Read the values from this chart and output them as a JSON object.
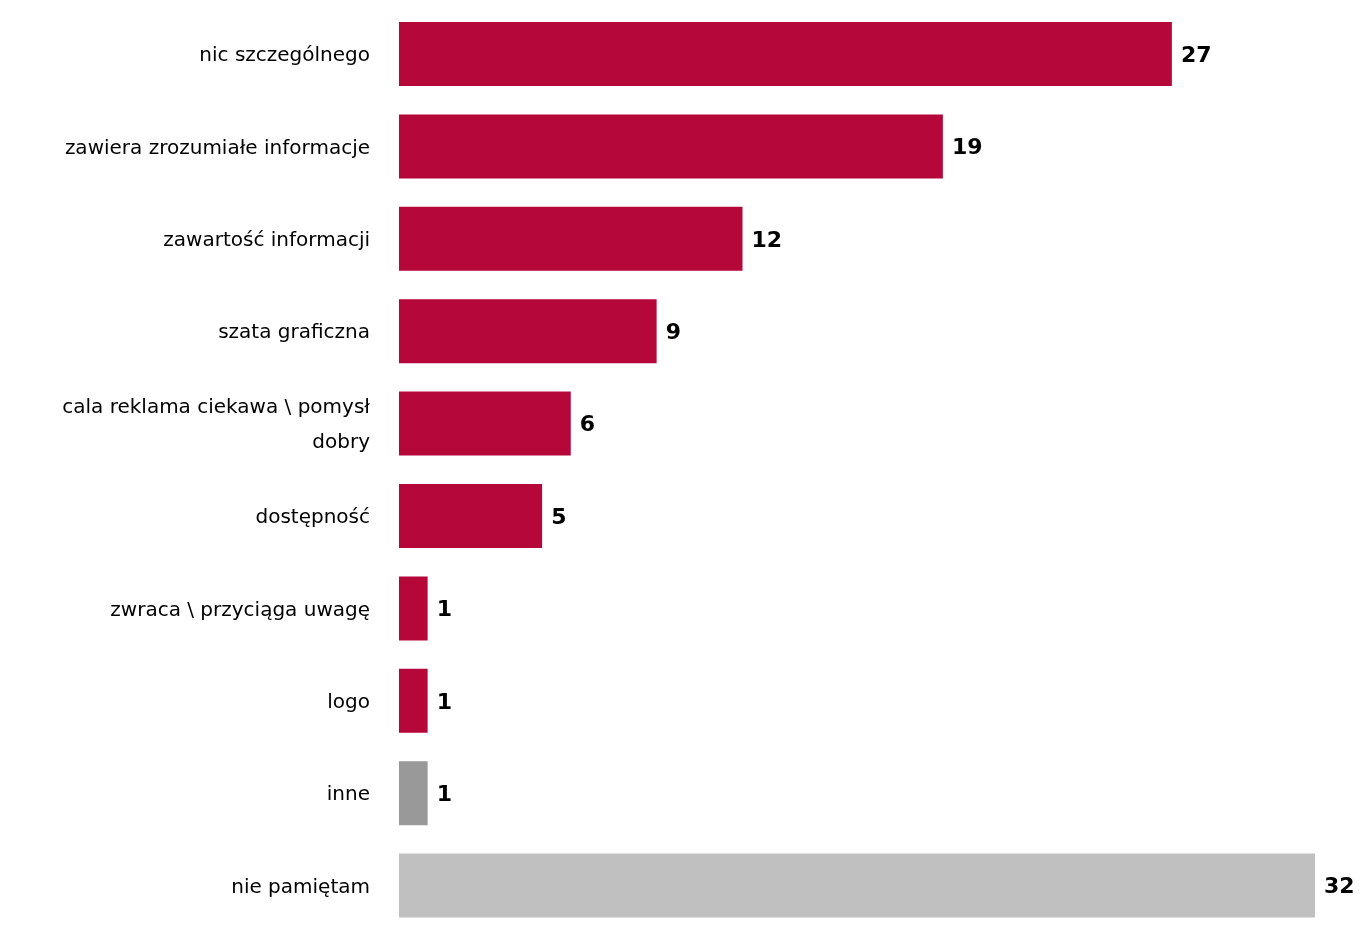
{
  "chart_data": {
    "type": "bar",
    "orientation": "horizontal",
    "categories": [
      "nic szczególnego",
      "zawiera zrozumiałe informacje",
      "zawartość informacji",
      "szata graficzna",
      "cala reklama ciekawa \\ pomysł dobry",
      "dostępność",
      "zwraca \\ przyciąga uwagę",
      "logo",
      "inne",
      "nie pamiętam"
    ],
    "values": [
      27,
      19,
      12,
      9,
      6,
      5,
      1,
      1,
      1,
      32
    ],
    "colors": [
      "#b5073a",
      "#b5073a",
      "#b5073a",
      "#b5073a",
      "#b5073a",
      "#b5073a",
      "#b5073a",
      "#b5073a",
      "#999999",
      "#c0c0c0"
    ],
    "data_labels": true
  }
}
